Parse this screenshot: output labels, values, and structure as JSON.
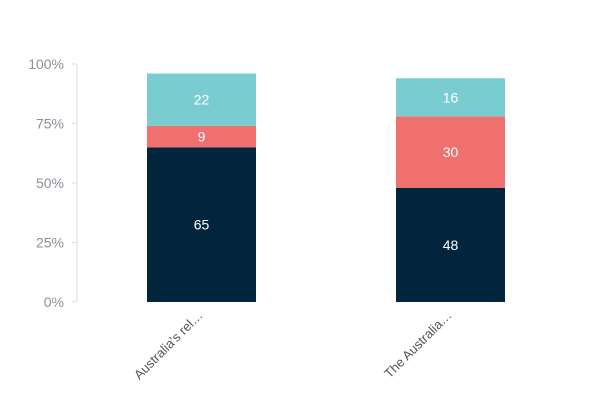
{
  "chart_data": {
    "type": "bar",
    "stacked": true,
    "categories": [
      "Australia's rel…",
      "The Australia…"
    ],
    "series": [
      {
        "values": [
          65,
          48
        ],
        "color": "#02243d"
      },
      {
        "values": [
          9,
          30
        ],
        "color": "#f07070"
      },
      {
        "values": [
          22,
          16
        ],
        "color": "#79cdd1"
      }
    ],
    "yticks": [
      "0%",
      "25%",
      "50%",
      "75%",
      "100%"
    ],
    "ylim": [
      0,
      100
    ],
    "grid": false,
    "legend": "none"
  }
}
